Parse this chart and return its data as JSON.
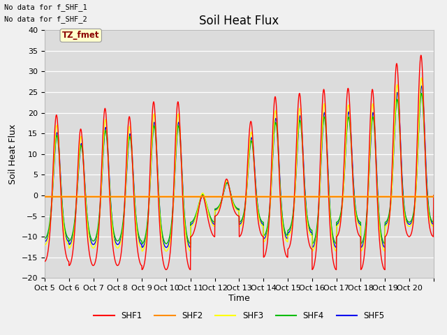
{
  "title": "Soil Heat Flux",
  "ylabel": "Soil Heat Flux",
  "xlabel": "Time",
  "ylim": [
    -20,
    40
  ],
  "annotation1": "No data for f_SHF_1",
  "annotation2": "No data for f_SHF_2",
  "tz_label": "TZ_fmet",
  "bg_color": "#dcdcdc",
  "fig_color": "#f0f0f0",
  "series_colors": {
    "SHF1": "#ff0000",
    "SHF2": "#ff8c00",
    "SHF3": "#ffff00",
    "SHF4": "#00bb00",
    "SHF5": "#0000ee"
  },
  "xtick_labels": [
    "Oct 5",
    "Oct 6",
    "Oct 7",
    "Oct 8",
    "Oct 9",
    "Oct 10",
    "Oct 11",
    "Oct 12",
    "Oct 13",
    "Oct 14",
    "Oct 15",
    "Oct 16",
    "Oct 17",
    "Oct 18",
    "Oct 19",
    "Oct 20"
  ],
  "title_fontsize": 12,
  "axis_label_fontsize": 9,
  "tick_fontsize": 8
}
